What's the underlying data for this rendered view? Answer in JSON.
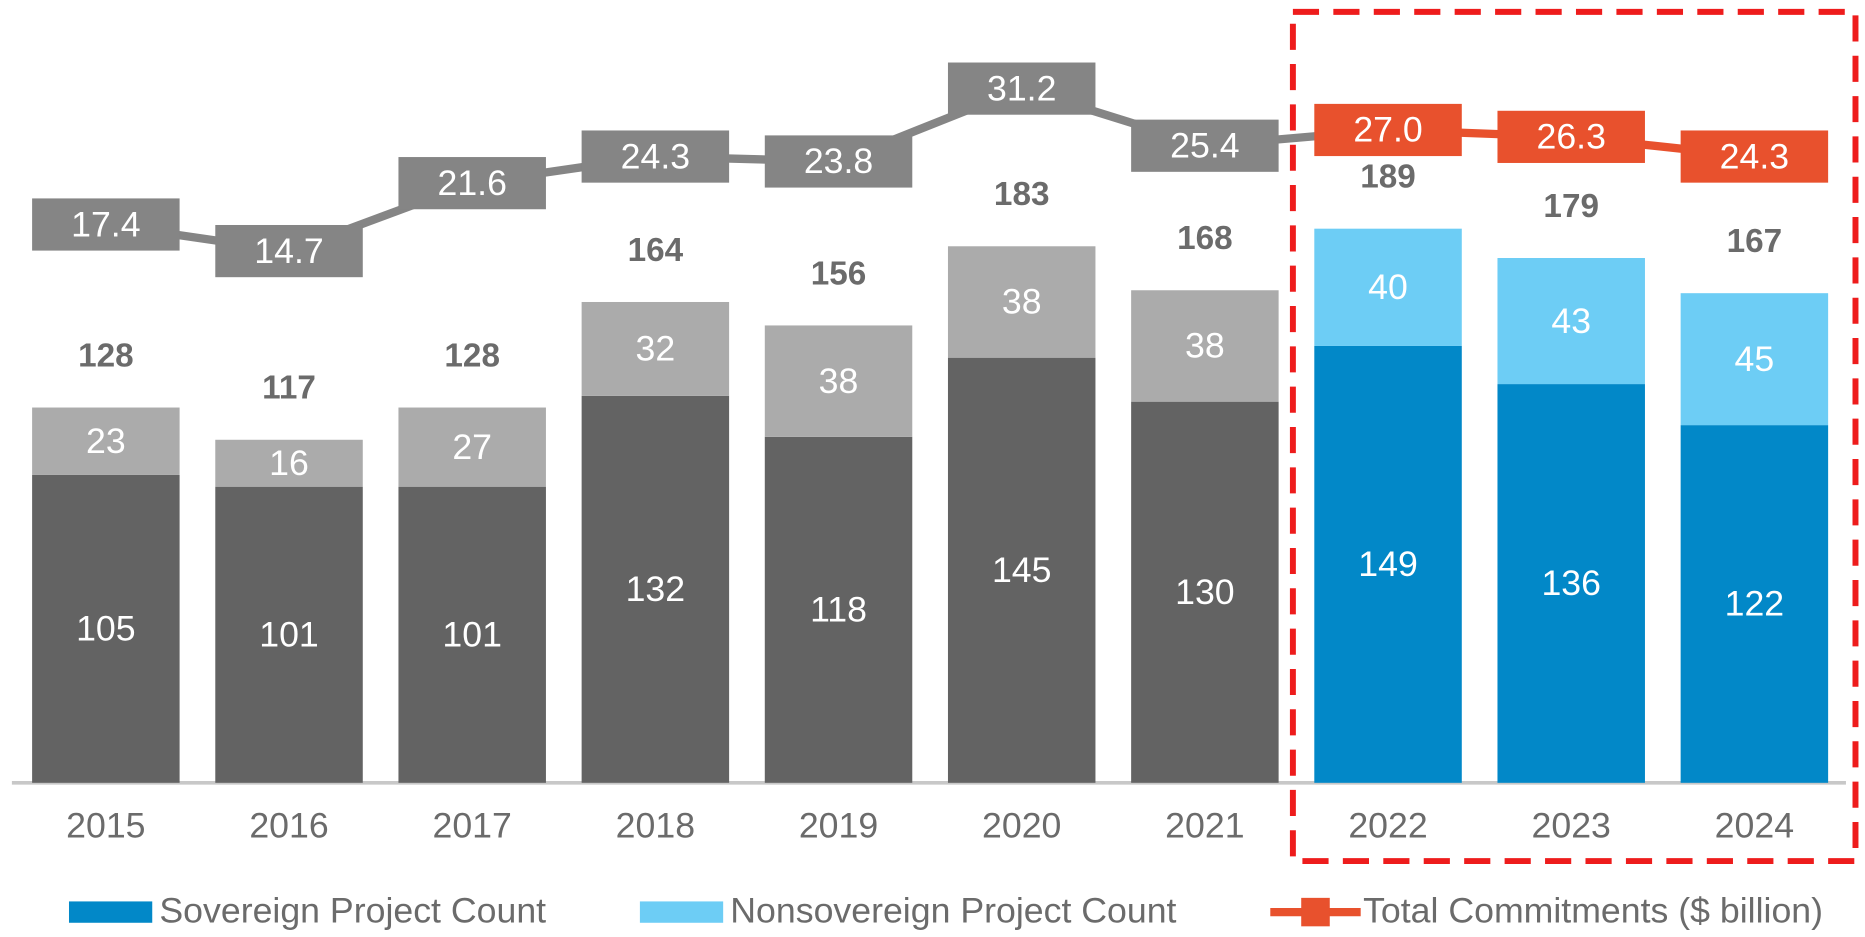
{
  "chart_data": {
    "type": "bar",
    "stacked": true,
    "categories": [
      "2015",
      "2016",
      "2017",
      "2018",
      "2019",
      "2020",
      "2021",
      "2022",
      "2023",
      "2024"
    ],
    "series": [
      {
        "name": "Sovereign Project Count",
        "color": "#0288c8",
        "point_colors": [
          "#636363",
          "#636363",
          "#636363",
          "#636363",
          "#636363",
          "#636363",
          "#636363",
          "#0288c8",
          "#0288c8",
          "#0288c8"
        ],
        "values": [
          105,
          101,
          101,
          132,
          118,
          145,
          130,
          149,
          136,
          122
        ]
      },
      {
        "name": "Nonsovereign Project Count",
        "color": "#6dcdf5",
        "point_colors": [
          "#ababab",
          "#ababab",
          "#ababab",
          "#ababab",
          "#ababab",
          "#ababab",
          "#ababab",
          "#6dcdf5",
          "#6dcdf5",
          "#6dcdf5"
        ],
        "values": [
          23,
          16,
          27,
          32,
          38,
          38,
          38,
          40,
          43,
          45
        ]
      },
      {
        "name": "Total Commitments ($ billion)",
        "type": "line",
        "axis": "y2",
        "color": "#e8512d",
        "point_colors": [
          "#858585",
          "#858585",
          "#858585",
          "#858585",
          "#858585",
          "#858585",
          "#858585",
          "#e8512d",
          "#e8512d",
          "#e8512d"
        ],
        "values": [
          17.4,
          14.7,
          21.6,
          24.3,
          23.8,
          31.2,
          25.4,
          27.0,
          26.3,
          24.3
        ],
        "value_labels": [
          "17.4",
          "14.7",
          "21.6",
          "24.3",
          "23.8",
          "31.2",
          "25.4",
          "27.0",
          "26.3",
          "24.3"
        ]
      }
    ],
    "total_labels": [
      128,
      117,
      128,
      164,
      156,
      183,
      168,
      189,
      179,
      167
    ],
    "ylim": [
      0,
      267
    ],
    "y2lim": [
      -39.3,
      40.2
    ],
    "legend": "bottom"
  }
}
